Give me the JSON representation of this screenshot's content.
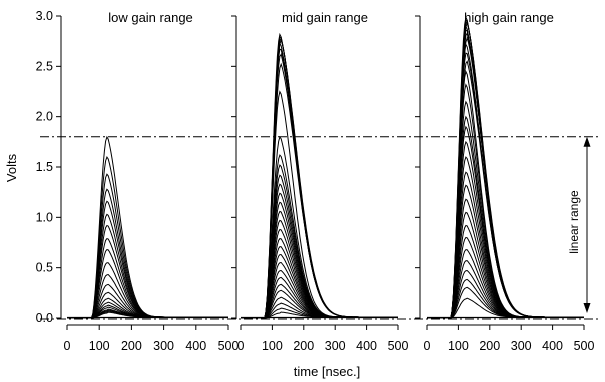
{
  "chart_data": {
    "type": "line",
    "ylabel": "Volts",
    "xlabel": "time [nsec.]",
    "ylim": [
      0.0,
      3.0
    ],
    "xlim": [
      0,
      500
    ],
    "yticks": [
      "0.0",
      "0.5",
      "1.0",
      "1.5",
      "2.0",
      "2.5",
      "3.0"
    ],
    "xticks": [
      "0",
      "100",
      "200",
      "300",
      "400",
      "500"
    ],
    "reference_lines": {
      "y": [
        1.8,
        0.0
      ],
      "style": "dash-dot"
    },
    "annotation": {
      "text": "linear range",
      "from": 0.05,
      "to": 1.8
    },
    "pulse_shape": {
      "onset_ns": 75,
      "peak_ns": 125
    },
    "panels": [
      {
        "title": "low gain range",
        "pulse_amplitudes": [
          1.8,
          1.6,
          1.43,
          1.28,
          1.16,
          1.03,
          0.92,
          0.79,
          0.68,
          0.55,
          0.43,
          0.33,
          0.25,
          0.19,
          0.15,
          0.12,
          0.1,
          0.08,
          0.07,
          0.06,
          0.05
        ]
      },
      {
        "title": "mid gain range",
        "pulse_amplitudes": [
          2.82,
          2.8,
          2.78,
          2.76,
          2.73,
          2.68,
          2.62,
          2.52,
          2.25,
          1.8,
          1.62,
          1.52,
          1.42,
          1.33,
          1.24,
          1.15,
          1.06,
          0.97,
          0.88,
          0.79,
          0.71,
          0.63,
          0.55,
          0.47,
          0.4,
          0.33,
          0.27,
          0.2,
          0.14,
          0.09,
          0.05
        ]
      },
      {
        "title": "high gain range",
        "pulse_amplitudes": [
          2.99,
          2.97,
          2.95,
          2.93,
          2.9,
          2.87,
          2.83,
          2.78,
          2.72,
          2.64,
          2.55,
          2.45,
          2.32,
          2.15,
          2.0,
          1.9,
          1.75,
          1.6,
          1.45,
          1.32,
          1.18,
          1.05,
          0.92,
          0.8,
          0.68,
          0.57,
          0.47,
          0.38,
          0.3,
          0.19
        ]
      }
    ]
  }
}
